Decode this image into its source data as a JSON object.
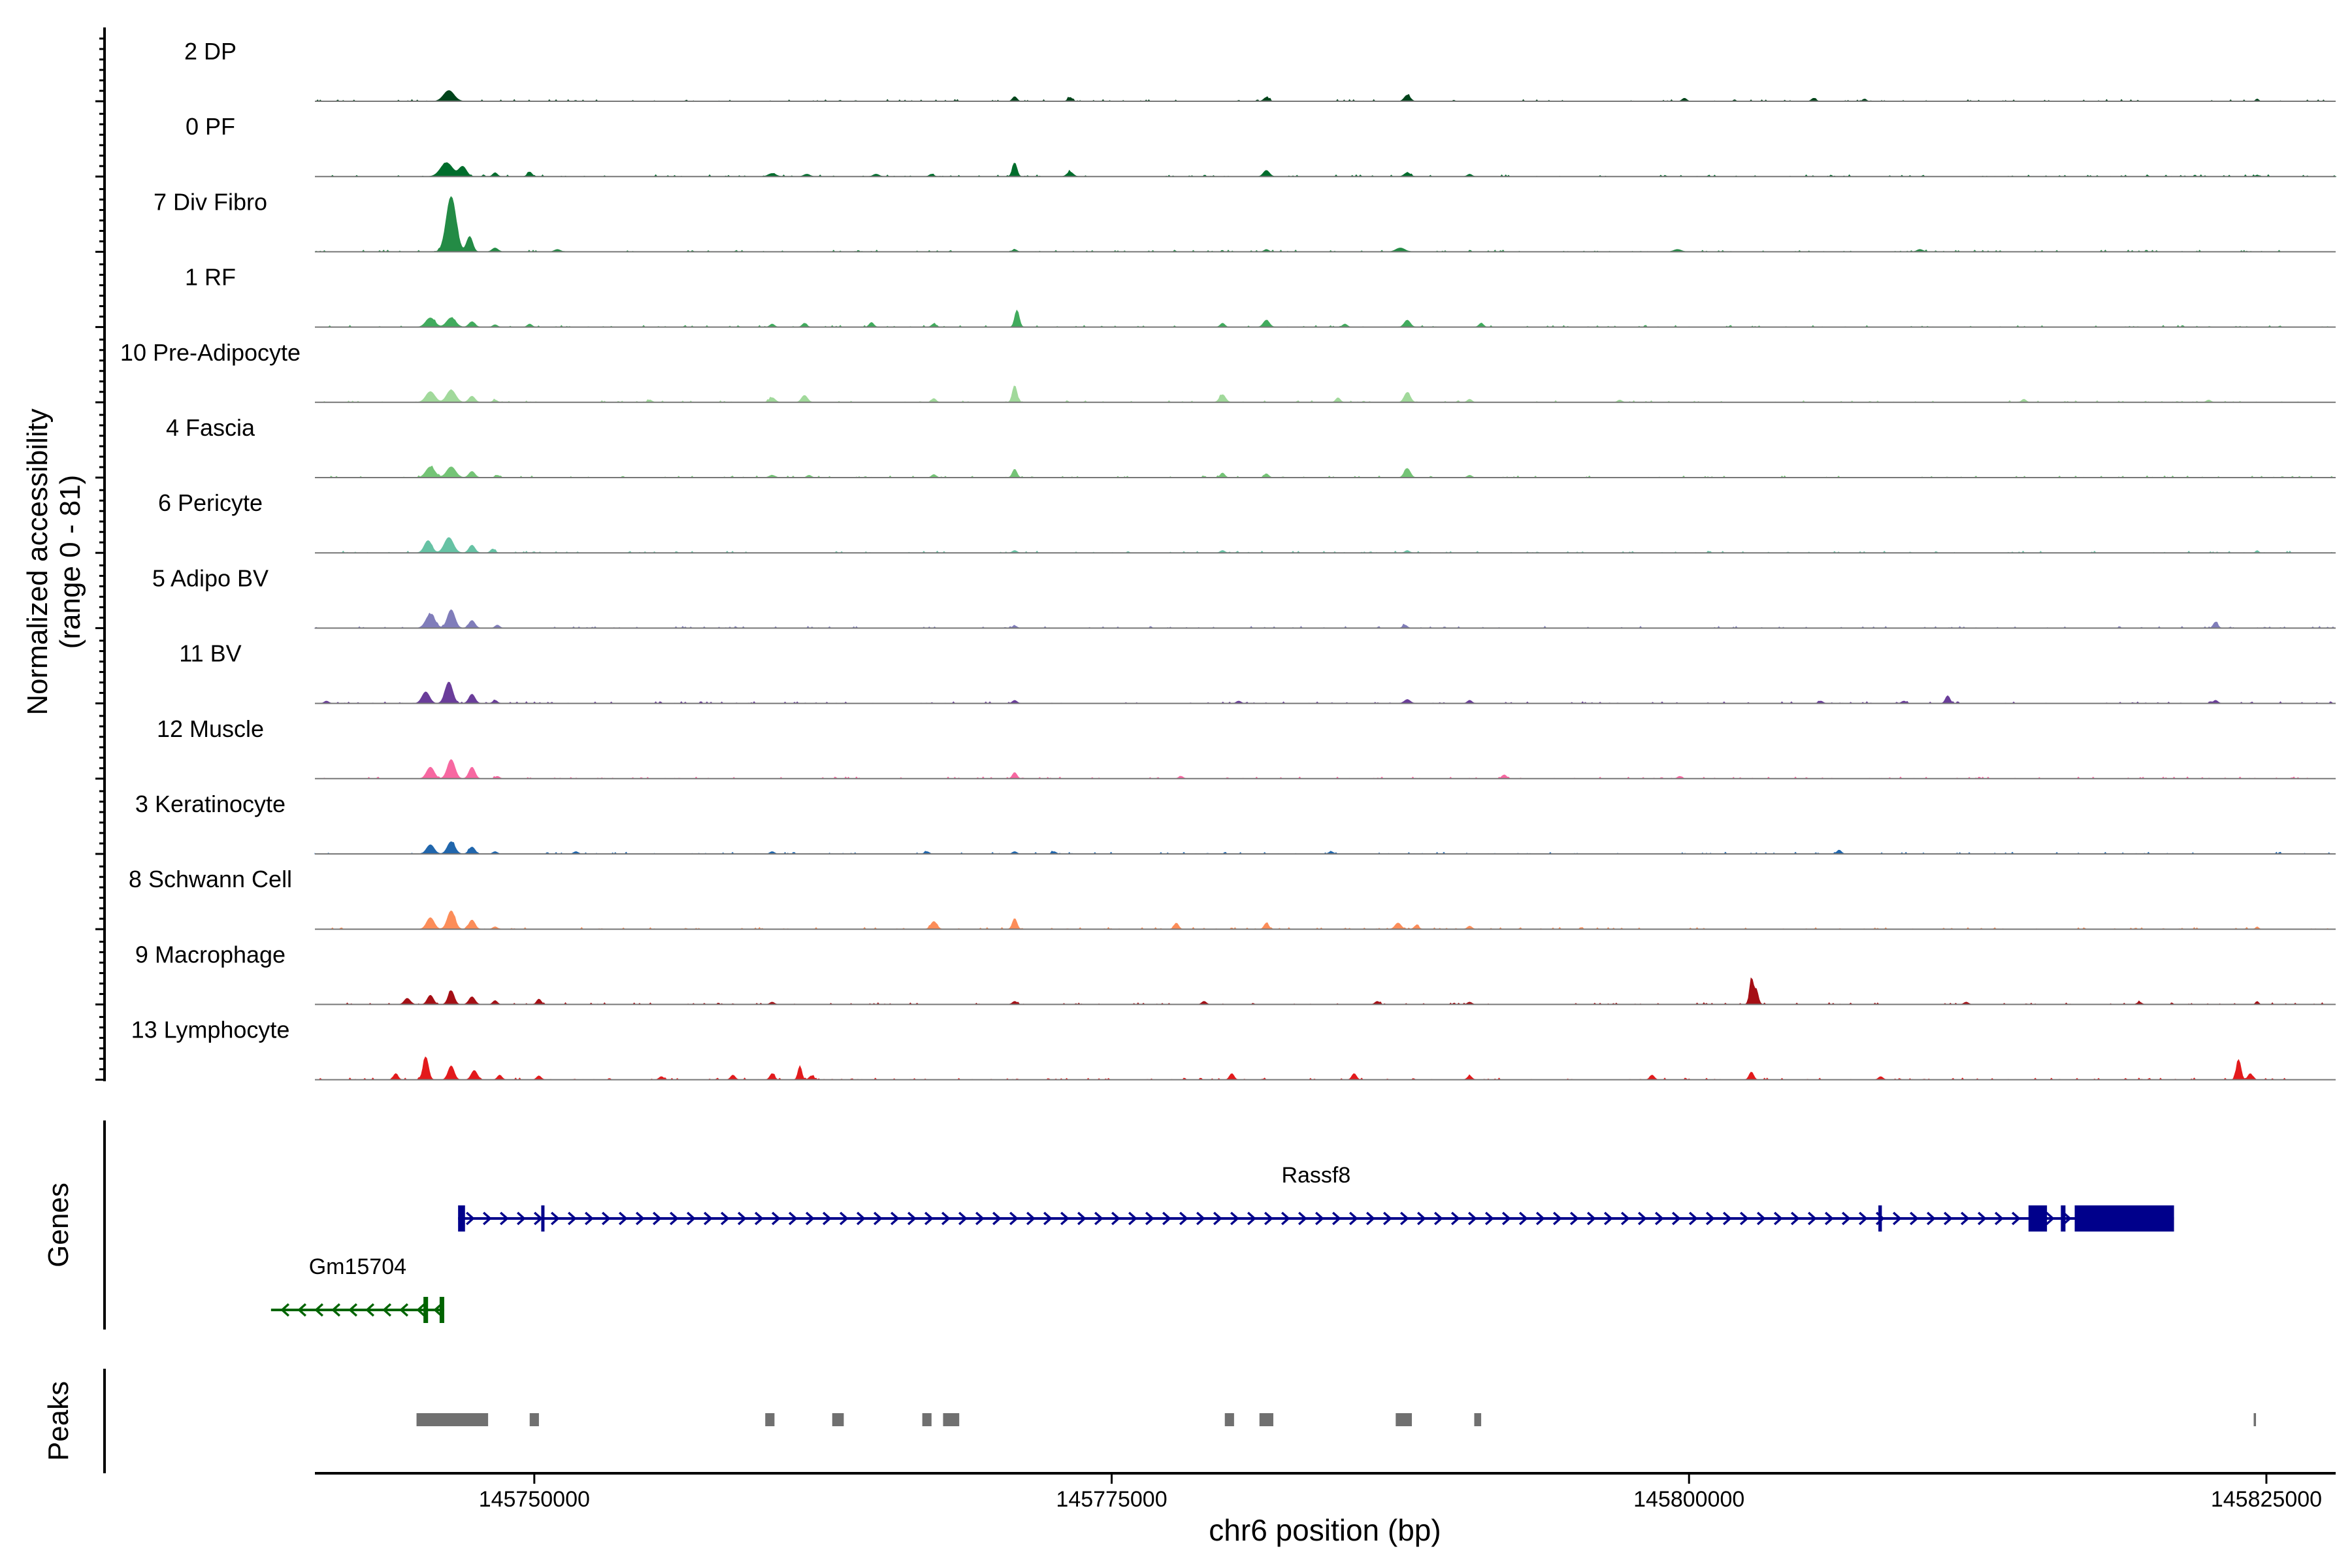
{
  "chart_data": {
    "type": "area",
    "ylabel_line1": "Normalized accessibility",
    "ylabel_line2": "(range 0 - 81)",
    "y_range": [
      0,
      81
    ],
    "xlabel": "chr6 position (bp)",
    "xlim": [
      145740500,
      145828000
    ],
    "xticks": [
      145750000,
      145775000,
      145800000,
      145825000
    ],
    "xtick_labels": [
      "145750000",
      "145775000",
      "145800000",
      "145825000"
    ],
    "tracks": [
      {
        "name": "2 DP",
        "color": "#00441b",
        "peaks": [
          [
            145746300,
            14,
            700
          ],
          [
            145770800,
            6,
            300
          ],
          [
            145773200,
            5,
            300
          ],
          [
            145781700,
            5,
            350
          ],
          [
            145787800,
            8,
            400
          ],
          [
            145799800,
            4,
            300
          ],
          [
            145805400,
            4,
            300
          ],
          [
            145807600,
            3,
            250
          ],
          [
            145824600,
            3,
            200
          ]
        ]
      },
      {
        "name": "0 PF",
        "color": "#006d2c",
        "peaks": [
          [
            145746200,
            18,
            800
          ],
          [
            145746900,
            13,
            500
          ],
          [
            145748300,
            5,
            300
          ],
          [
            145749800,
            6,
            300
          ],
          [
            145760300,
            4,
            500
          ],
          [
            145761800,
            3,
            400
          ],
          [
            145764800,
            3,
            400
          ],
          [
            145767200,
            3,
            300
          ],
          [
            145770800,
            18,
            300
          ],
          [
            145773200,
            6,
            400
          ],
          [
            145781700,
            8,
            400
          ],
          [
            145787800,
            5,
            400
          ],
          [
            145790500,
            3,
            300
          ],
          [
            145824600,
            2,
            200
          ]
        ]
      },
      {
        "name": "7 Div Fibro",
        "color": "#238b45",
        "peaks": [
          [
            145746400,
            72,
            650
          ],
          [
            145747200,
            20,
            400
          ],
          [
            145748300,
            5,
            400
          ],
          [
            145751000,
            3,
            400
          ],
          [
            145770800,
            3,
            300
          ],
          [
            145781700,
            3,
            300
          ],
          [
            145787500,
            5,
            600
          ],
          [
            145799500,
            3,
            500
          ],
          [
            145810000,
            3,
            400
          ]
        ]
      },
      {
        "name": "1 RF",
        "color": "#41ab5d",
        "peaks": [
          [
            145745500,
            12,
            600
          ],
          [
            145746400,
            12,
            600
          ],
          [
            145747300,
            7,
            400
          ],
          [
            145748300,
            3,
            300
          ],
          [
            145749800,
            4,
            300
          ],
          [
            145760300,
            4,
            300
          ],
          [
            145761700,
            5,
            300
          ],
          [
            145764600,
            6,
            300
          ],
          [
            145767300,
            4,
            300
          ],
          [
            145770900,
            22,
            300
          ],
          [
            145779800,
            5,
            300
          ],
          [
            145781700,
            9,
            400
          ],
          [
            145785100,
            4,
            300
          ],
          [
            145787800,
            9,
            400
          ],
          [
            145791000,
            5,
            300
          ]
        ]
      },
      {
        "name": "10 Pre-Adipocyte",
        "color": "#a1d99b",
        "peaks": [
          [
            145745500,
            14,
            600
          ],
          [
            145746400,
            16,
            600
          ],
          [
            145747300,
            8,
            400
          ],
          [
            145748300,
            3,
            300
          ],
          [
            145755000,
            3,
            300
          ],
          [
            145760300,
            6,
            400
          ],
          [
            145761700,
            9,
            400
          ],
          [
            145767300,
            5,
            300
          ],
          [
            145770800,
            22,
            300
          ],
          [
            145779800,
            10,
            400
          ],
          [
            145784800,
            6,
            300
          ],
          [
            145787800,
            13,
            400
          ],
          [
            145790500,
            4,
            300
          ],
          [
            145797000,
            3,
            300
          ],
          [
            145814500,
            4,
            300
          ],
          [
            145822500,
            3,
            300
          ]
        ]
      },
      {
        "name": "4 Fascia",
        "color": "#74c476",
        "peaks": [
          [
            145745500,
            14,
            600
          ],
          [
            145746400,
            14,
            600
          ],
          [
            145747300,
            8,
            400
          ],
          [
            145748400,
            3,
            300
          ],
          [
            145760300,
            3,
            400
          ],
          [
            145761900,
            3,
            300
          ],
          [
            145767300,
            4,
            300
          ],
          [
            145770800,
            11,
            300
          ],
          [
            145779800,
            6,
            300
          ],
          [
            145781700,
            5,
            300
          ],
          [
            145787800,
            12,
            400
          ],
          [
            145790500,
            3,
            300
          ]
        ]
      },
      {
        "name": "6 Pericyte",
        "color": "#66c2a4",
        "peaks": [
          [
            145745400,
            16,
            500
          ],
          [
            145746300,
            20,
            600
          ],
          [
            145747300,
            10,
            400
          ],
          [
            145748200,
            5,
            300
          ],
          [
            145770800,
            3,
            300
          ],
          [
            145779800,
            3,
            300
          ],
          [
            145787800,
            3,
            300
          ],
          [
            145824600,
            3,
            200
          ]
        ]
      },
      {
        "name": "5 Adipo BV",
        "color": "#807dba",
        "peaks": [
          [
            145745500,
            18,
            600
          ],
          [
            145746400,
            24,
            500
          ],
          [
            145747300,
            10,
            400
          ],
          [
            145748400,
            4,
            300
          ],
          [
            145770800,
            3,
            300
          ],
          [
            145787700,
            4,
            300
          ],
          [
            145822800,
            8,
            300
          ]
        ]
      },
      {
        "name": "11 BV",
        "color": "#6a3d9a",
        "peaks": [
          [
            145741000,
            3,
            300
          ],
          [
            145745300,
            15,
            500
          ],
          [
            145746300,
            28,
            500
          ],
          [
            145747300,
            12,
            400
          ],
          [
            145748300,
            4,
            300
          ],
          [
            145770800,
            4,
            300
          ],
          [
            145780500,
            3,
            300
          ],
          [
            145787800,
            5,
            400
          ],
          [
            145790500,
            4,
            300
          ],
          [
            145805700,
            3,
            300
          ],
          [
            145809300,
            3,
            300
          ],
          [
            145811200,
            10,
            300
          ],
          [
            145822800,
            4,
            300
          ]
        ]
      },
      {
        "name": "12 Muscle",
        "color": "#f768a1",
        "peaks": [
          [
            145745500,
            15,
            500
          ],
          [
            145746400,
            25,
            500
          ],
          [
            145747300,
            15,
            400
          ],
          [
            145748400,
            3,
            300
          ],
          [
            145770800,
            8,
            300
          ],
          [
            145778000,
            3,
            300
          ],
          [
            145792000,
            5,
            300
          ],
          [
            145799600,
            3,
            300
          ]
        ]
      },
      {
        "name": "3 Keratinocyte",
        "color": "#2166ac",
        "peaks": [
          [
            145745500,
            12,
            500
          ],
          [
            145746400,
            16,
            500
          ],
          [
            145747300,
            9,
            400
          ],
          [
            145748300,
            3,
            300
          ],
          [
            145751800,
            3,
            300
          ],
          [
            145760300,
            3,
            300
          ],
          [
            145767000,
            3,
            300
          ],
          [
            145770800,
            3,
            300
          ],
          [
            145772500,
            3,
            300
          ],
          [
            145784500,
            3,
            300
          ],
          [
            145806500,
            5,
            300
          ]
        ]
      },
      {
        "name": "8 Schwann Cell",
        "color": "#fc8d59",
        "peaks": [
          [
            145745500,
            15,
            500
          ],
          [
            145746400,
            24,
            500
          ],
          [
            145747300,
            12,
            400
          ],
          [
            145748300,
            3,
            300
          ],
          [
            145767300,
            10,
            400
          ],
          [
            145770800,
            14,
            300
          ],
          [
            145777800,
            8,
            300
          ],
          [
            145781700,
            8,
            300
          ],
          [
            145787400,
            8,
            400
          ],
          [
            145788200,
            5,
            300
          ],
          [
            145790500,
            4,
            300
          ],
          [
            145824600,
            3,
            200
          ]
        ]
      },
      {
        "name": "9 Macrophage",
        "color": "#a50f15",
        "peaks": [
          [
            145744500,
            8,
            400
          ],
          [
            145745500,
            12,
            400
          ],
          [
            145746400,
            18,
            400
          ],
          [
            145747300,
            10,
            400
          ],
          [
            145748300,
            5,
            300
          ],
          [
            145750200,
            7,
            300
          ],
          [
            145760300,
            3,
            300
          ],
          [
            145770800,
            4,
            300
          ],
          [
            145779000,
            4,
            300
          ],
          [
            145786500,
            4,
            300
          ],
          [
            145790500,
            3,
            300
          ],
          [
            145802700,
            32,
            250
          ],
          [
            145802900,
            18,
            300
          ],
          [
            145812000,
            3,
            300
          ],
          [
            145819500,
            3,
            300
          ],
          [
            145824600,
            4,
            200
          ]
        ]
      },
      {
        "name": "13 Lymphocyte",
        "color": "#e31a1c",
        "peaks": [
          [
            145744000,
            8,
            300
          ],
          [
            145745300,
            30,
            350
          ],
          [
            145746400,
            18,
            400
          ],
          [
            145747400,
            12,
            400
          ],
          [
            145748500,
            6,
            300
          ],
          [
            145750200,
            5,
            300
          ],
          [
            145755500,
            4,
            300
          ],
          [
            145758600,
            6,
            300
          ],
          [
            145760300,
            8,
            300
          ],
          [
            145761500,
            18,
            250
          ],
          [
            145762000,
            5,
            300
          ],
          [
            145780200,
            8,
            300
          ],
          [
            145785500,
            8,
            300
          ],
          [
            145790500,
            5,
            300
          ],
          [
            145798400,
            6,
            300
          ],
          [
            145802700,
            10,
            300
          ],
          [
            145808300,
            4,
            300
          ],
          [
            145823800,
            26,
            300
          ],
          [
            145824300,
            8,
            300
          ]
        ]
      }
    ],
    "genes": {
      "label": "Genes",
      "items": [
        {
          "name": "Rassf8",
          "strand": "+",
          "color": "#00008b",
          "start": 145746700,
          "end": 145821000,
          "exons": [
            [
              145746700,
              145747000,
              "thin"
            ],
            [
              145750300,
              145750400,
              "thin"
            ],
            [
              145808200,
              145808350,
              "thin"
            ],
            [
              145814700,
              145815500,
              "thick"
            ],
            [
              145816100,
              145816300,
              "thin"
            ],
            [
              145816700,
              145821000,
              "thick"
            ]
          ]
        },
        {
          "name": "Gm15704",
          "strand": "-",
          "color": "#006400",
          "start": 145738600,
          "end": 145746100,
          "exons": [
            [
              145745200,
              145745400,
              "thin"
            ],
            [
              145745900,
              145746100,
              "thin"
            ]
          ]
        }
      ]
    },
    "peaks_track": {
      "label": "Peaks",
      "color": "#707070",
      "regions": [
        [
          145744900,
          145748000
        ],
        [
          145749800,
          145750200
        ],
        [
          145760000,
          145760400
        ],
        [
          145762900,
          145763400
        ],
        [
          145766800,
          145767200
        ],
        [
          145767700,
          145768400
        ],
        [
          145779900,
          145780300
        ],
        [
          145781400,
          145782000
        ],
        [
          145787300,
          145788000
        ],
        [
          145790700,
          145791000
        ],
        [
          145824450,
          145824550
        ]
      ]
    }
  }
}
